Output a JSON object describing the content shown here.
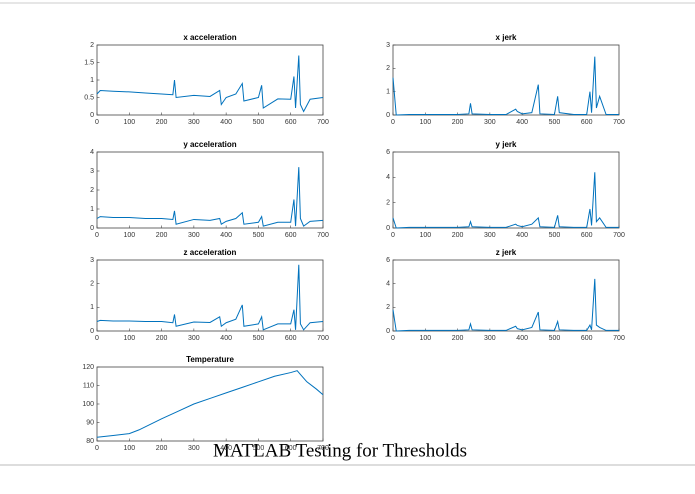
{
  "slide_title": "MATLAB Testing for Thresholds",
  "chart_data": [
    {
      "type": "line",
      "title": "x acceleration",
      "xlim": [
        0,
        700
      ],
      "xticks": [
        0,
        100,
        200,
        300,
        400,
        500,
        600,
        700
      ],
      "ylim": [
        0,
        2
      ],
      "yticks": [
        0,
        0.5,
        1,
        1.5,
        2
      ],
      "color": "#0072bd",
      "x": [
        0,
        10,
        50,
        100,
        150,
        200,
        235,
        240,
        245,
        300,
        350,
        380,
        385,
        400,
        430,
        450,
        455,
        500,
        510,
        515,
        560,
        600,
        610,
        615,
        625,
        630,
        640,
        660,
        700
      ],
      "values": [
        0.6,
        0.7,
        0.68,
        0.66,
        0.63,
        0.6,
        0.58,
        1.0,
        0.5,
        0.56,
        0.53,
        0.7,
        0.3,
        0.5,
        0.6,
        0.9,
        0.4,
        0.5,
        0.85,
        0.2,
        0.46,
        0.45,
        1.1,
        0.2,
        1.7,
        0.3,
        0.1,
        0.45,
        0.5
      ]
    },
    {
      "type": "line",
      "title": "x jerk",
      "xlim": [
        0,
        700
      ],
      "xticks": [
        0,
        100,
        200,
        300,
        400,
        500,
        600,
        700
      ],
      "ylim": [
        0,
        3
      ],
      "yticks": [
        0,
        1,
        2,
        3
      ],
      "color": "#0072bd",
      "x": [
        0,
        10,
        50,
        100,
        150,
        200,
        235,
        240,
        245,
        300,
        350,
        380,
        385,
        400,
        430,
        450,
        455,
        500,
        510,
        515,
        560,
        600,
        610,
        615,
        625,
        630,
        640,
        660,
        700
      ],
      "values": [
        1.6,
        0,
        0.02,
        0.02,
        0.02,
        0.02,
        0.05,
        0.5,
        0.05,
        0.02,
        0.02,
        0.25,
        0.15,
        0.05,
        0.1,
        1.3,
        0.05,
        0.02,
        0.8,
        0.1,
        0.02,
        0.02,
        1.0,
        0.1,
        2.5,
        0.3,
        0.8,
        0.02,
        0.02
      ]
    },
    {
      "type": "line",
      "title": "y acceleration",
      "xlim": [
        0,
        700
      ],
      "xticks": [
        0,
        100,
        200,
        300,
        400,
        500,
        600,
        700
      ],
      "ylim": [
        0,
        4
      ],
      "yticks": [
        0,
        1,
        2,
        3,
        4
      ],
      "color": "#0072bd",
      "x": [
        0,
        10,
        50,
        100,
        150,
        200,
        235,
        240,
        245,
        300,
        350,
        380,
        385,
        400,
        430,
        450,
        455,
        500,
        510,
        515,
        560,
        600,
        610,
        615,
        625,
        630,
        640,
        660,
        700
      ],
      "values": [
        0.5,
        0.6,
        0.55,
        0.55,
        0.5,
        0.5,
        0.45,
        0.9,
        0.2,
        0.45,
        0.4,
        0.5,
        0.2,
        0.35,
        0.5,
        0.8,
        0.2,
        0.3,
        0.6,
        0.1,
        0.3,
        0.3,
        1.5,
        0.1,
        3.2,
        0.5,
        0.1,
        0.35,
        0.4
      ]
    },
    {
      "type": "line",
      "title": "y jerk",
      "xlim": [
        0,
        700
      ],
      "xticks": [
        0,
        100,
        200,
        300,
        400,
        500,
        600,
        700
      ],
      "ylim": [
        0,
        6
      ],
      "yticks": [
        0,
        2,
        4,
        6
      ],
      "color": "#0072bd",
      "x": [
        0,
        10,
        50,
        100,
        150,
        200,
        235,
        240,
        245,
        300,
        350,
        380,
        385,
        400,
        430,
        450,
        455,
        500,
        510,
        515,
        560,
        600,
        610,
        615,
        625,
        630,
        640,
        660,
        700
      ],
      "values": [
        0.8,
        0,
        0.05,
        0.05,
        0.05,
        0.05,
        0.1,
        0.5,
        0.1,
        0.05,
        0.05,
        0.3,
        0.2,
        0.1,
        0.3,
        0.8,
        0.1,
        0.05,
        1.0,
        0.1,
        0.05,
        0.05,
        1.5,
        0.2,
        4.4,
        0.5,
        0.8,
        0.05,
        0.05
      ]
    },
    {
      "type": "line",
      "title": "z acceleration",
      "xlim": [
        0,
        700
      ],
      "xticks": [
        0,
        100,
        200,
        300,
        400,
        500,
        600,
        700
      ],
      "ylim": [
        0,
        3
      ],
      "yticks": [
        0,
        1,
        2,
        3
      ],
      "color": "#0072bd",
      "x": [
        0,
        10,
        50,
        100,
        150,
        200,
        235,
        240,
        245,
        300,
        350,
        380,
        385,
        400,
        430,
        450,
        455,
        500,
        510,
        515,
        560,
        600,
        610,
        615,
        625,
        630,
        640,
        660,
        700
      ],
      "values": [
        0.4,
        0.45,
        0.42,
        0.42,
        0.4,
        0.4,
        0.35,
        0.7,
        0.2,
        0.38,
        0.36,
        0.6,
        0.2,
        0.35,
        0.5,
        1.1,
        0.2,
        0.3,
        0.6,
        0.05,
        0.3,
        0.3,
        0.9,
        0.05,
        2.8,
        0.3,
        0.05,
        0.35,
        0.4
      ]
    },
    {
      "type": "line",
      "title": "z jerk",
      "xlim": [
        0,
        700
      ],
      "xticks": [
        0,
        100,
        200,
        300,
        400,
        500,
        600,
        700
      ],
      "ylim": [
        0,
        6
      ],
      "yticks": [
        0,
        2,
        4,
        6
      ],
      "color": "#0072bd",
      "x": [
        0,
        10,
        50,
        100,
        150,
        200,
        235,
        240,
        245,
        300,
        350,
        380,
        385,
        400,
        430,
        450,
        455,
        500,
        510,
        515,
        560,
        600,
        610,
        615,
        625,
        630,
        640,
        660,
        700
      ],
      "values": [
        1.8,
        0,
        0.05,
        0.05,
        0.05,
        0.05,
        0.1,
        0.6,
        0.1,
        0.05,
        0.05,
        0.4,
        0.2,
        0.1,
        0.3,
        1.6,
        0.1,
        0.05,
        0.8,
        0.1,
        0.05,
        0.05,
        0.5,
        0.1,
        4.4,
        0.5,
        0.3,
        0.05,
        0.05
      ]
    },
    {
      "type": "line",
      "title": "Temperature",
      "xlim": [
        0,
        700
      ],
      "xticks": [
        0,
        100,
        200,
        300,
        400,
        500,
        600,
        700
      ],
      "ylim": [
        80,
        120
      ],
      "yticks": [
        80,
        90,
        100,
        110,
        120
      ],
      "color": "#0072bd",
      "x": [
        0,
        50,
        100,
        130,
        200,
        250,
        300,
        350,
        400,
        450,
        500,
        550,
        600,
        620,
        630,
        650,
        680,
        700
      ],
      "values": [
        82,
        83,
        84,
        86,
        92,
        96,
        100,
        103,
        106,
        109,
        112,
        115,
        117,
        118,
        116,
        112,
        108,
        105
      ]
    }
  ]
}
